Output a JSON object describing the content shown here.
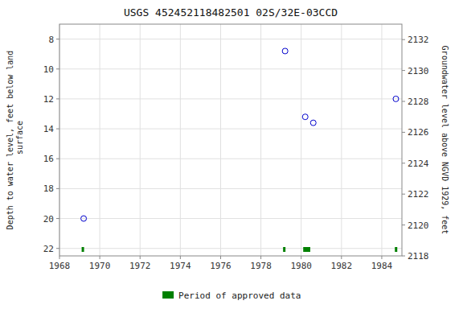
{
  "chart_data": {
    "type": "scatter",
    "title": "USGS 452452118482501 02S/32E-03CCD",
    "x": [
      1969.2,
      1979.2,
      1980.2,
      1980.6,
      1984.7
    ],
    "series": [
      {
        "color": "#0000cc",
        "marker": "circle",
        "values": [
          20.0,
          8.8,
          13.2,
          13.6,
          12.0
        ]
      }
    ],
    "periods": {
      "name": "Period of approved data",
      "color": "#008000",
      "start": [
        1969.1,
        1979.1,
        1980.1,
        1984.65
      ],
      "width": [
        0.12,
        0.12,
        0.35,
        0.12
      ]
    },
    "xlim": [
      1968,
      1985
    ],
    "xticks": [
      1968,
      1970,
      1972,
      1974,
      1976,
      1978,
      1980,
      1982,
      1984
    ],
    "ylim": [
      22.5,
      7.0
    ],
    "yticks": [
      8,
      10,
      12,
      14,
      16,
      18,
      20,
      22
    ],
    "y2lim": [
      2118,
      2133
    ],
    "y2ticks": [
      2118,
      2120,
      2122,
      2124,
      2126,
      2128,
      2130,
      2132
    ],
    "ylabel": "Depth to water level, feet below land\n surface",
    "y2label": "Groundwater level above NGVD 1929, feet",
    "grid": true,
    "legend": "bottom"
  }
}
